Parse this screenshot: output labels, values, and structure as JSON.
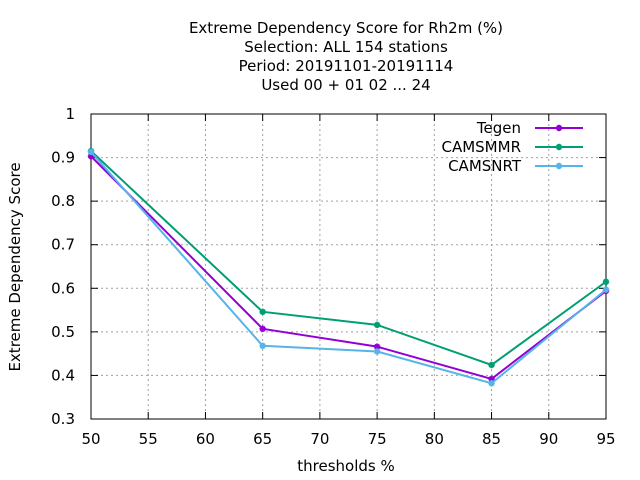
{
  "chart_data": {
    "type": "line",
    "title_lines": [
      "Extreme Dependency Score  for Rh2m (%)",
      "Selection: ALL    154 stations",
      "Period: 20191101-20191114",
      "Used  00 + 01 02 ... 24"
    ],
    "xlabel": "thresholds %",
    "ylabel": "Extreme Dependency Score",
    "xlim": [
      50,
      95
    ],
    "ylim": [
      0.3,
      1.0
    ],
    "x_ticks": [
      50,
      55,
      60,
      65,
      70,
      75,
      80,
      85,
      90,
      95
    ],
    "x_tick_labels": [
      "50",
      "55",
      "60",
      "65",
      "70",
      "75",
      "80",
      "85",
      "90",
      "95"
    ],
    "y_ticks": [
      0.3,
      0.4,
      0.5,
      0.6,
      0.7,
      0.8,
      0.9,
      1.0
    ],
    "y_tick_labels": [
      "0.3",
      "0.4",
      "0.5",
      "0.6",
      "0.7",
      "0.8",
      "0.9",
      "1"
    ],
    "grid": true,
    "legend_position": "top-right",
    "x": [
      50,
      65,
      75,
      85,
      95
    ],
    "series": [
      {
        "name": "Tegen",
        "color": "#9400d3",
        "values": [
          0.903,
          0.507,
          0.466,
          0.392,
          0.594
        ]
      },
      {
        "name": "CAMSMMR",
        "color": "#009e73",
        "values": [
          0.915,
          0.546,
          0.516,
          0.424,
          0.615
        ]
      },
      {
        "name": "CAMSNRT",
        "color": "#56b4e9",
        "values": [
          0.913,
          0.468,
          0.455,
          0.382,
          0.597
        ]
      }
    ]
  }
}
